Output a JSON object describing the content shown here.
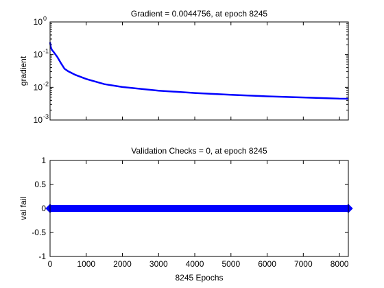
{
  "chart_data": [
    {
      "type": "line",
      "title": "Gradient = 0.0044756, at epoch 8245",
      "xlabel": "",
      "ylabel": "gradient",
      "yscale": "log",
      "xlim": [
        0,
        8245
      ],
      "ylim": [
        0.001,
        1
      ],
      "y_ticks": [
        {
          "value": 0.001,
          "base": "10",
          "exp": "-3"
        },
        {
          "value": 0.01,
          "base": "10",
          "exp": "-2"
        },
        {
          "value": 0.1,
          "base": "10",
          "exp": "-1"
        },
        {
          "value": 1,
          "base": "10",
          "exp": "0"
        }
      ],
      "x_ticks": [
        0,
        1000,
        2000,
        3000,
        4000,
        5000,
        6000,
        7000,
        8000
      ],
      "x_tick_labels_visible": false,
      "line_color": "#0000ff",
      "series": [
        {
          "x": [
            0,
            20,
            50,
            100,
            200,
            300,
            400,
            500,
            700,
            1000,
            1500,
            2000,
            3000,
            4000,
            5000,
            6000,
            7000,
            8000,
            8245
          ],
          "y": [
            0.24,
            0.17,
            0.14,
            0.12,
            0.085,
            0.055,
            0.037,
            0.031,
            0.024,
            0.018,
            0.0125,
            0.0102,
            0.0079,
            0.0067,
            0.0059,
            0.0053,
            0.0049,
            0.0045,
            0.0044756
          ]
        }
      ]
    },
    {
      "type": "line",
      "title": "Validation Checks = 0, at epoch 8245",
      "xlabel": "8245 Epochs",
      "ylabel": "val fail",
      "xlim": [
        0,
        8245
      ],
      "ylim": [
        -1,
        1
      ],
      "y_ticks": [
        "-1",
        "-0.5",
        "0",
        "0.5",
        "1"
      ],
      "y_tick_values": [
        -1,
        -0.5,
        0,
        0.5,
        1
      ],
      "x_ticks": [
        0,
        1000,
        2000,
        3000,
        4000,
        5000,
        6000,
        7000,
        8000
      ],
      "x_tick_labels": [
        "0",
        "1000",
        "2000",
        "3000",
        "4000",
        "5000",
        "6000",
        "7000",
        "8000"
      ],
      "line_color": "#0000ff",
      "marker": "diamond",
      "series": [
        {
          "x": [
            0,
            8245
          ],
          "y": [
            0,
            0
          ]
        }
      ]
    }
  ]
}
